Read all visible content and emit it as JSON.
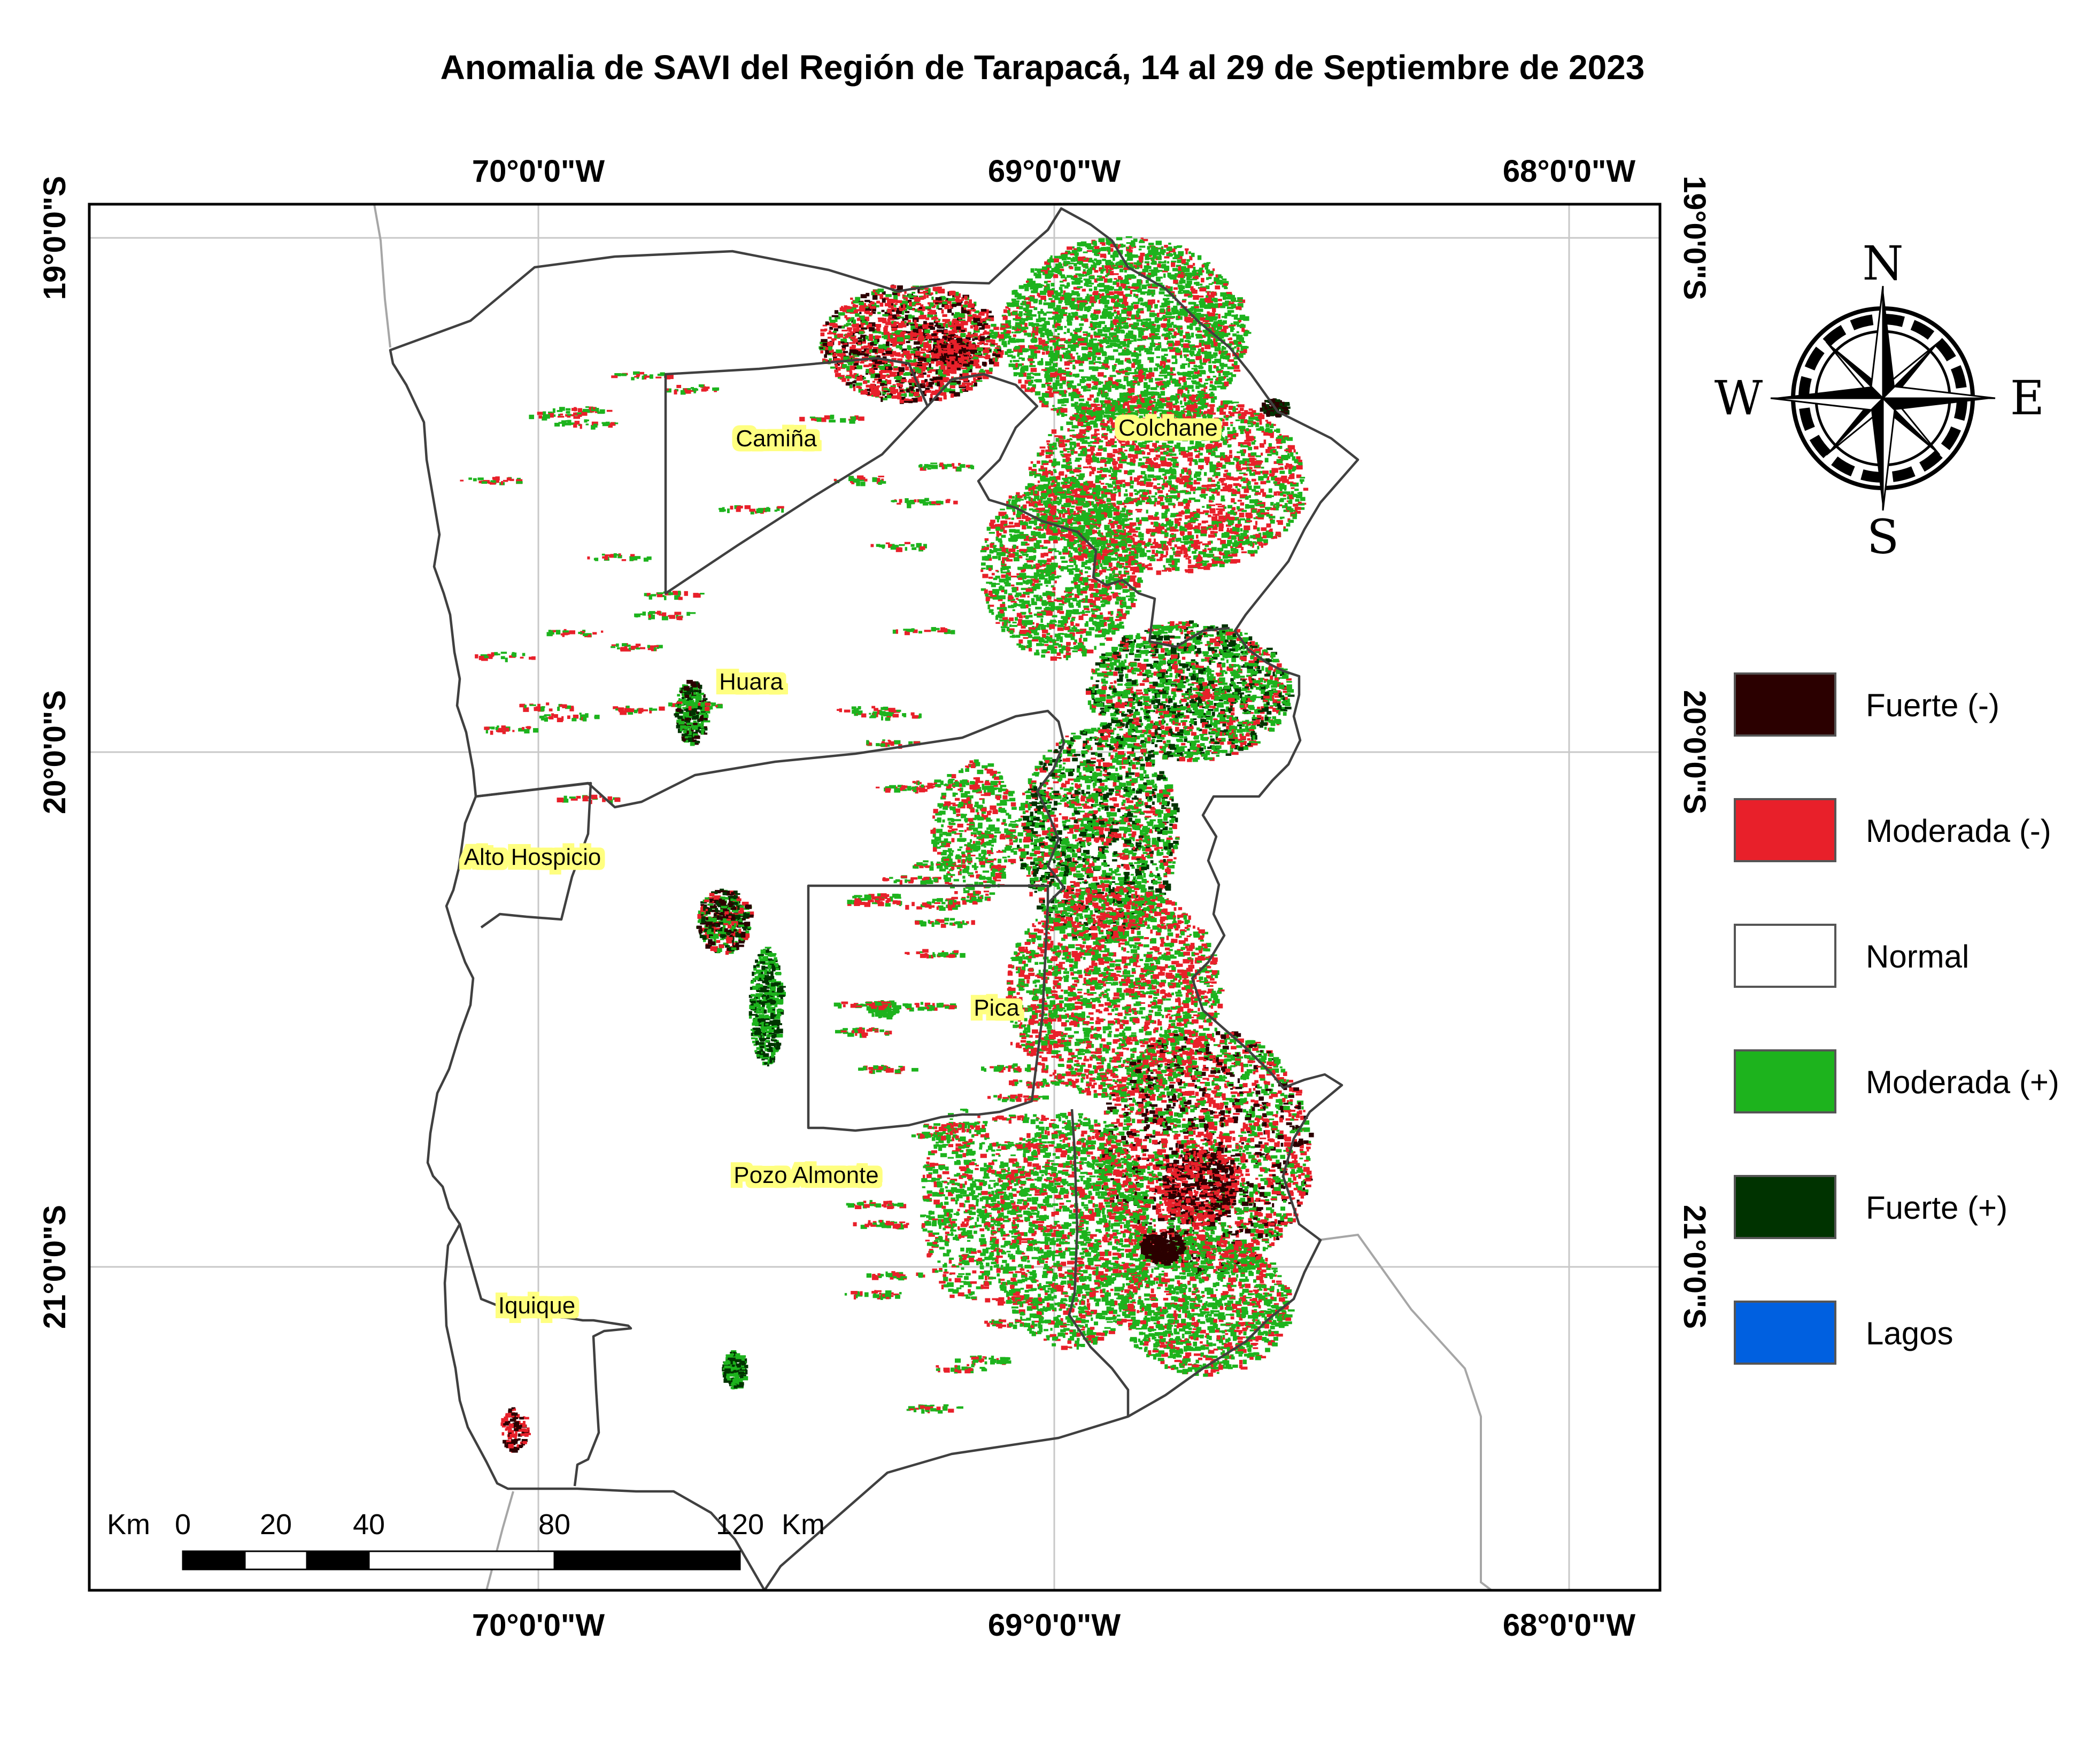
{
  "title": "Anomalia de SAVI del Región de Tarapacá, 14 al 29 de Septiembre de 2023",
  "axes": {
    "longitudes": [
      "70°0'0\"W",
      "69°0'0\"W",
      "68°0'0\"W"
    ],
    "latitudes": [
      "19°0'0\"S",
      "20°0'0\"S",
      "21°0'0\"S"
    ]
  },
  "communes": [
    {
      "key": "camina",
      "name": "Camiña"
    },
    {
      "key": "colchane",
      "name": "Colchane"
    },
    {
      "key": "huara",
      "name": "Huara"
    },
    {
      "key": "alto_hospicio",
      "name": "Alto Hospicio"
    },
    {
      "key": "pica",
      "name": "Pica"
    },
    {
      "key": "pozo_almonte",
      "name": "Pozo Almonte"
    },
    {
      "key": "iquique",
      "name": "Iquique"
    }
  ],
  "north_arrow": {
    "n": "N",
    "s": "S",
    "e": "E",
    "w": "W"
  },
  "scalebar": {
    "unit_left": "Km",
    "unit_right": "Km",
    "ticks": [
      "0",
      "20",
      "40",
      "80",
      "120"
    ]
  },
  "legend": [
    {
      "label": "Fuerte (-)",
      "color": "#2b0000"
    },
    {
      "label": "Moderada (-)",
      "color": "#e8202a"
    },
    {
      "label": "Normal",
      "color": "#ffffff"
    },
    {
      "label": "Moderada (+)",
      "color": "#1db31d"
    },
    {
      "label": "Fuerte (+)",
      "color": "#003300"
    },
    {
      "label": "Lagos",
      "color": "#0060e0"
    }
  ],
  "colors": {
    "strong_negative": "#2b0000",
    "moderate_negative": "#e8202a",
    "moderate_positive": "#1db31d",
    "strong_positive": "#003300",
    "label_highlight": "#ffff80",
    "boundary": "#404040",
    "neighbor_boundary": "#a6a6a6",
    "graticule": "#c8c8c8"
  }
}
